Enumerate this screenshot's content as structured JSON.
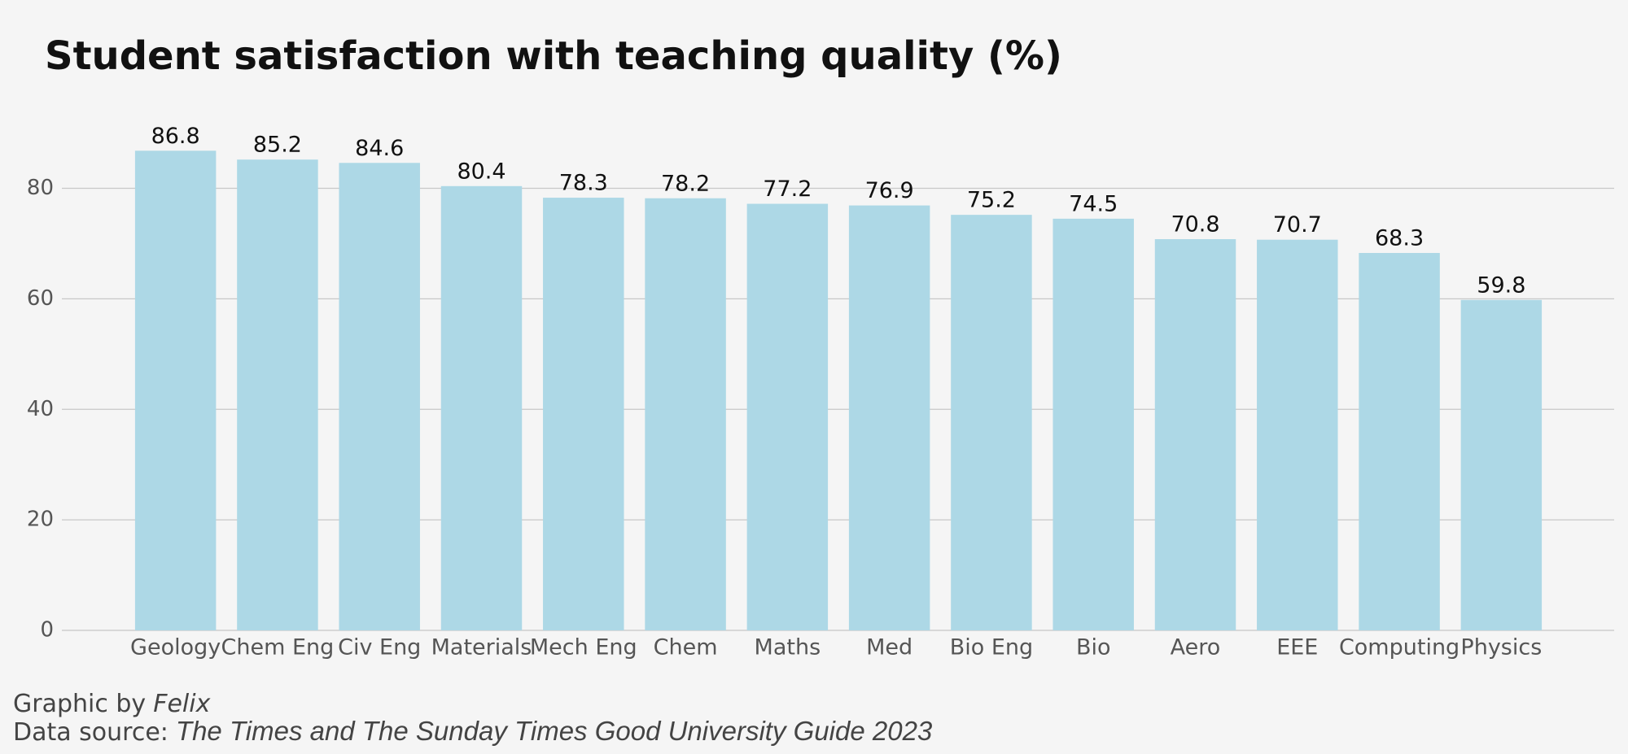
{
  "chart_data": {
    "type": "bar",
    "title": "Student satisfaction with teaching quality (%)",
    "categories": [
      "Geology",
      "Chem Eng",
      "Civ Eng",
      "Materials",
      "Mech Eng",
      "Chem",
      "Maths",
      "Med",
      "Bio Eng",
      "Bio",
      "Aero",
      "EEE",
      "Computing",
      "Physics"
    ],
    "values": [
      86.8,
      85.2,
      84.6,
      80.4,
      78.3,
      78.2,
      77.2,
      76.9,
      75.2,
      74.5,
      70.8,
      70.7,
      68.3,
      59.8
    ],
    "color": "#add8e6",
    "ylim": [
      0,
      92
    ],
    "yticks": [
      0,
      20,
      40,
      60,
      80
    ],
    "grid": true,
    "credit_label": "Graphic by",
    "credit_name": "Felix",
    "source_label": "Data source:",
    "source_name": "The Times and The Sunday Times Good University Guide 2023"
  }
}
